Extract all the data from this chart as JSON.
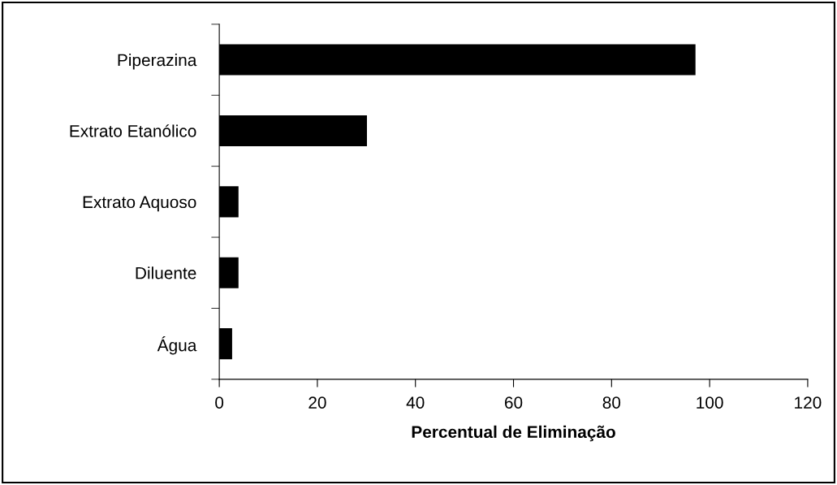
{
  "chart_data": {
    "type": "bar",
    "orientation": "horizontal",
    "xlabel": "Percentual de Eliminação",
    "categories": [
      "Piperazina",
      "Extrato Etanólico",
      "Extrato Aquoso",
      "Diluente",
      "Água"
    ],
    "values": [
      97,
      30,
      3.8,
      3.8,
      2.5
    ],
    "color": "#000000",
    "xlim": [
      0,
      120
    ],
    "xticks": [
      0,
      20,
      40,
      60,
      80,
      100,
      120
    ],
    "grid": false,
    "legend": false
  }
}
